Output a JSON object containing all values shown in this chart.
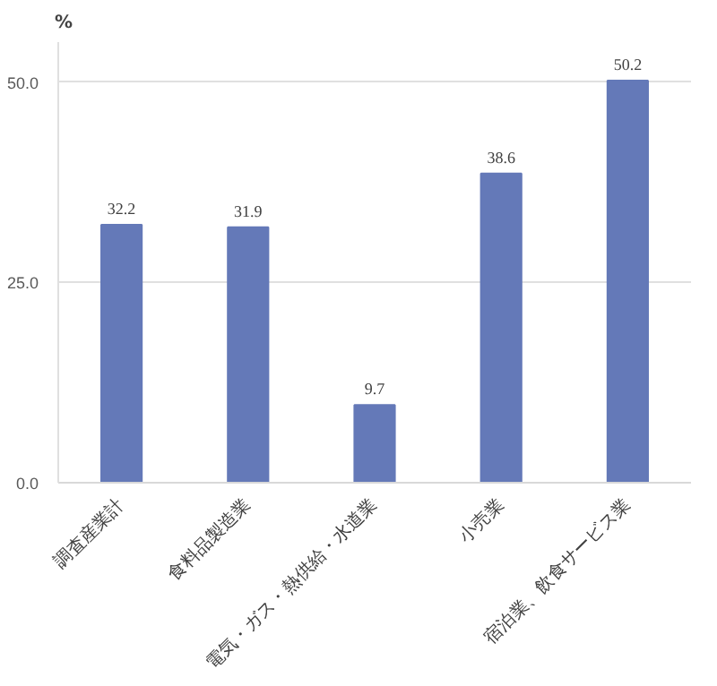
{
  "chart_data": {
    "type": "bar",
    "ylabel": "%",
    "categories": [
      "調査産業計",
      "食料品製造業",
      "電気・ガス・熱供給・水道業",
      "小売業",
      "宿泊業、飲食サービス業"
    ],
    "values": [
      32.2,
      31.9,
      9.7,
      38.6,
      50.2
    ],
    "color": "#6479b8",
    "data_labels": true,
    "ylim": [
      0,
      55
    ],
    "yticks": [
      {
        "value": 0,
        "label": "0.0"
      },
      {
        "value": 25,
        "label": "25.0"
      },
      {
        "value": 50,
        "label": "50.0"
      }
    ],
    "grid": "y"
  }
}
